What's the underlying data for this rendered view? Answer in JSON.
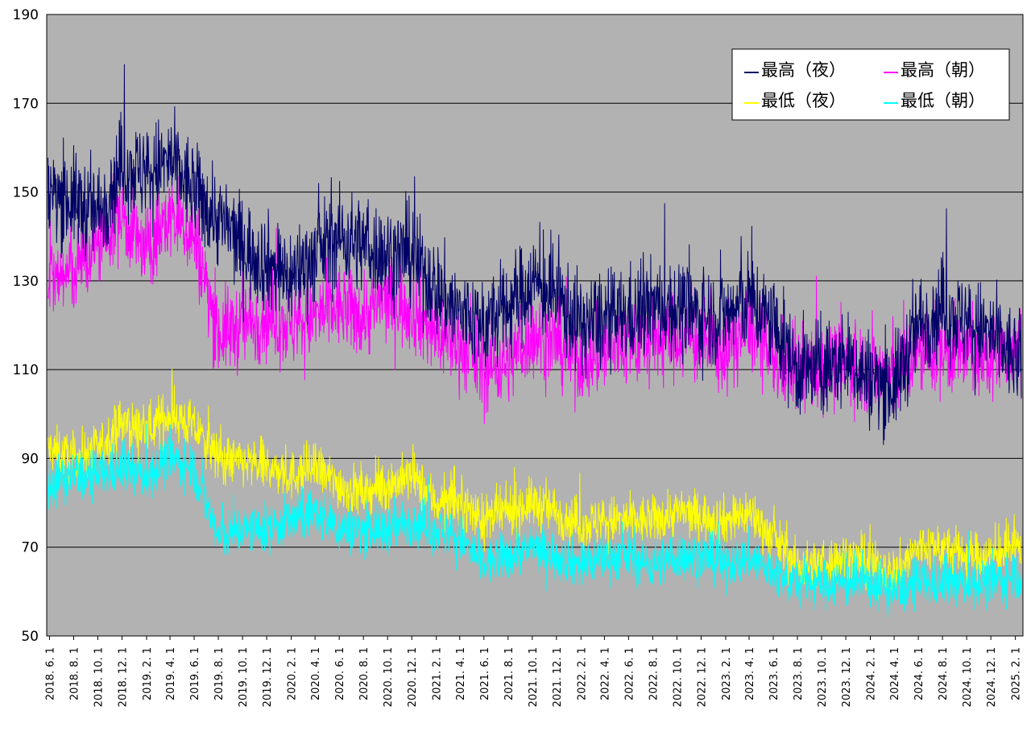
{
  "chart_data": {
    "type": "line",
    "title": "",
    "xlabel": "",
    "ylabel": "",
    "ylim": [
      50,
      190
    ],
    "yticks": [
      50,
      70,
      90,
      110,
      130,
      150,
      170,
      190
    ],
    "grid": "horizontal",
    "legend_position": "top-right",
    "background_color": "#b2b2b2",
    "x_range": [
      "2018-05-25",
      "2025-02-20"
    ],
    "x_tick_labels": [
      "2018. 6. 1",
      "2018. 8. 1",
      "2018. 10. 1",
      "2018. 12. 1",
      "2019. 2. 1",
      "2019. 4. 1",
      "2019. 6. 1",
      "2019. 8. 1",
      "2019. 10. 1",
      "2019. 12. 1",
      "2020. 2. 1",
      "2020. 4. 1",
      "2020. 6. 1",
      "2020. 8. 1",
      "2020. 10. 1",
      "2020. 12. 1",
      "2021. 2. 1",
      "2021. 4. 1",
      "2021. 6. 1",
      "2021. 8. 1",
      "2021. 10. 1",
      "2021. 12. 1",
      "2022. 2. 1",
      "2022. 4. 1",
      "2022. 6. 1",
      "2022. 8. 1",
      "2022. 10. 1",
      "2022. 12. 1",
      "2023. 2. 1",
      "2023. 4. 1",
      "2023. 6. 1",
      "2023. 8. 1",
      "2023. 10. 1",
      "2023. 12. 1",
      "2024. 2. 1",
      "2024. 4. 1",
      "2024. 6. 1",
      "2024. 8. 1",
      "2024. 10. 1",
      "2024. 12. 1",
      "2025. 2. 1"
    ],
    "x_tick_dates": [
      "2018-06-01",
      "2018-08-01",
      "2018-10-01",
      "2018-12-01",
      "2019-02-01",
      "2019-04-01",
      "2019-06-01",
      "2019-08-01",
      "2019-10-01",
      "2019-12-01",
      "2020-02-01",
      "2020-04-01",
      "2020-06-01",
      "2020-08-01",
      "2020-10-01",
      "2020-12-01",
      "2021-02-01",
      "2021-04-01",
      "2021-06-01",
      "2021-08-01",
      "2021-10-01",
      "2021-12-01",
      "2022-02-01",
      "2022-04-01",
      "2022-06-01",
      "2022-08-01",
      "2022-10-01",
      "2022-12-01",
      "2023-02-01",
      "2023-04-01",
      "2023-06-01",
      "2023-08-01",
      "2023-10-01",
      "2023-12-01",
      "2024-02-01",
      "2024-04-01",
      "2024-06-01",
      "2024-08-01",
      "2024-10-01",
      "2024-12-01",
      "2025-02-01"
    ],
    "series": [
      {
        "name": "最高（夜）",
        "color": "#000066",
        "x": [
          "2018-06-01",
          "2018-08-01",
          "2018-10-01",
          "2018-12-01",
          "2019-02-01",
          "2019-04-01",
          "2019-06-01",
          "2019-08-01",
          "2019-10-01",
          "2019-12-01",
          "2020-02-01",
          "2020-04-01",
          "2020-06-01",
          "2020-08-01",
          "2020-10-01",
          "2020-12-01",
          "2021-02-01",
          "2021-04-01",
          "2021-06-01",
          "2021-08-01",
          "2021-10-01",
          "2021-12-01",
          "2022-02-01",
          "2022-04-01",
          "2022-06-01",
          "2022-08-01",
          "2022-10-01",
          "2022-12-01",
          "2023-02-01",
          "2023-04-01",
          "2023-06-01",
          "2023-08-01",
          "2023-10-01",
          "2023-12-01",
          "2024-02-01",
          "2024-04-01",
          "2024-06-01",
          "2024-08-01",
          "2024-10-01",
          "2024-12-01",
          "2025-02-01"
        ],
        "values": [
          150,
          148,
          145,
          156,
          154,
          157,
          150,
          144,
          138,
          134,
          131,
          136,
          140,
          138,
          136,
          136,
          128,
          123,
          120,
          124,
          130,
          126,
          120,
          121,
          122,
          124,
          124,
          122,
          122,
          126,
          120,
          110,
          110,
          112,
          108,
          106,
          120,
          124,
          120,
          118,
          112
        ],
        "noise": 10
      },
      {
        "name": "最高（朝）",
        "color": "#ff00ff",
        "x": [
          "2018-06-01",
          "2018-08-01",
          "2018-10-01",
          "2018-12-01",
          "2019-02-01",
          "2019-04-01",
          "2019-06-01",
          "2019-08-01",
          "2019-10-01",
          "2019-12-01",
          "2020-02-01",
          "2020-04-01",
          "2020-06-01",
          "2020-08-01",
          "2020-10-01",
          "2020-12-01",
          "2021-02-01",
          "2021-04-01",
          "2021-06-01",
          "2021-08-01",
          "2021-10-01",
          "2021-12-01",
          "2022-02-01",
          "2022-04-01",
          "2022-06-01",
          "2022-08-01",
          "2022-10-01",
          "2022-12-01",
          "2023-02-01",
          "2023-04-01",
          "2023-06-01",
          "2023-08-01",
          "2023-10-01",
          "2023-12-01",
          "2024-02-01",
          "2024-04-01",
          "2024-06-01",
          "2024-08-01",
          "2024-10-01",
          "2024-12-01",
          "2025-02-01"
        ],
        "values": [
          130,
          132,
          138,
          145,
          136,
          145,
          140,
          118,
          120,
          122,
          120,
          122,
          124,
          122,
          126,
          124,
          118,
          116,
          110,
          112,
          118,
          116,
          112,
          114,
          116,
          116,
          118,
          116,
          114,
          120,
          112,
          110,
          110,
          112,
          110,
          108,
          114,
          114,
          114,
          112,
          114
        ],
        "noise": 9
      },
      {
        "name": "最低（夜）",
        "color": "#ffff00",
        "x": [
          "2018-06-01",
          "2018-08-01",
          "2018-10-01",
          "2018-12-01",
          "2019-02-01",
          "2019-04-01",
          "2019-06-01",
          "2019-08-01",
          "2019-10-01",
          "2019-12-01",
          "2020-02-01",
          "2020-04-01",
          "2020-06-01",
          "2020-08-01",
          "2020-10-01",
          "2020-12-01",
          "2021-02-01",
          "2021-04-01",
          "2021-06-01",
          "2021-08-01",
          "2021-10-01",
          "2021-12-01",
          "2022-02-01",
          "2022-04-01",
          "2022-06-01",
          "2022-08-01",
          "2022-10-01",
          "2022-12-01",
          "2023-02-01",
          "2023-04-01",
          "2023-06-01",
          "2023-08-01",
          "2023-10-01",
          "2023-12-01",
          "2024-02-01",
          "2024-04-01",
          "2024-06-01",
          "2024-08-01",
          "2024-10-01",
          "2024-12-01",
          "2025-02-01"
        ],
        "values": [
          92,
          90,
          92,
          98,
          96,
          100,
          97,
          90,
          89,
          88,
          86,
          88,
          84,
          82,
          84,
          86,
          80,
          80,
          76,
          78,
          80,
          78,
          75,
          76,
          76,
          76,
          78,
          77,
          76,
          78,
          72,
          66,
          66,
          68,
          66,
          64,
          70,
          70,
          68,
          68,
          70
        ],
        "noise": 5
      },
      {
        "name": "最低（朝）",
        "color": "#00ffff",
        "x": [
          "2018-06-01",
          "2018-08-01",
          "2018-10-01",
          "2018-12-01",
          "2019-02-01",
          "2019-04-01",
          "2019-06-01",
          "2019-08-01",
          "2019-10-01",
          "2019-12-01",
          "2020-02-01",
          "2020-04-01",
          "2020-06-01",
          "2020-08-01",
          "2020-10-01",
          "2020-12-01",
          "2021-02-01",
          "2021-04-01",
          "2021-06-01",
          "2021-08-01",
          "2021-10-01",
          "2021-12-01",
          "2022-02-01",
          "2022-04-01",
          "2022-06-01",
          "2022-08-01",
          "2022-10-01",
          "2022-12-01",
          "2023-02-01",
          "2023-04-01",
          "2023-06-01",
          "2023-08-01",
          "2023-10-01",
          "2023-12-01",
          "2024-02-01",
          "2024-04-01",
          "2024-06-01",
          "2024-08-01",
          "2024-10-01",
          "2024-12-01",
          "2025-02-01"
        ],
        "values": [
          84,
          86,
          86,
          88,
          86,
          90,
          88,
          72,
          74,
          74,
          76,
          78,
          74,
          74,
          74,
          76,
          74,
          72,
          66,
          68,
          70,
          68,
          66,
          68,
          68,
          66,
          68,
          68,
          66,
          68,
          64,
          62,
          62,
          62,
          62,
          60,
          62,
          62,
          62,
          62,
          64
        ],
        "noise": 5
      }
    ]
  }
}
